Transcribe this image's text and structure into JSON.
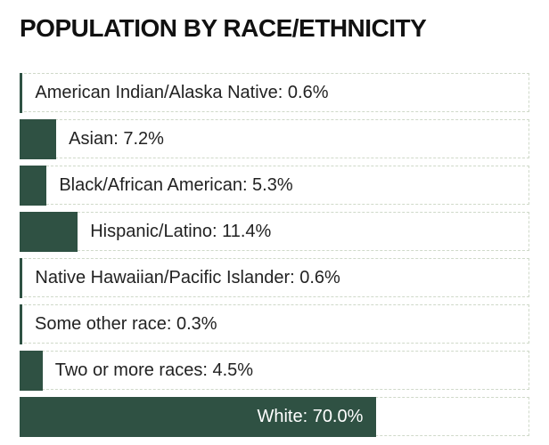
{
  "chart_data": {
    "type": "bar",
    "orientation": "horizontal",
    "title": "POPULATION BY RACE/ETHNICITY",
    "categories": [
      "American Indian/Alaska Native",
      "Asian",
      "Black/African American",
      "Hispanic/Latino",
      "Native Hawaiian/Pacific Islander",
      "Some other race",
      "Two or more races",
      "White"
    ],
    "values": [
      0.6,
      7.2,
      5.3,
      11.4,
      0.6,
      0.3,
      4.5,
      70.0
    ],
    "labels": [
      "American Indian/Alaska Native: 0.6%",
      "Asian: 7.2%",
      "Black/African American: 5.3%",
      "Hispanic/Latino: 11.4%",
      "Native Hawaiian/Pacific Islander: 0.6%",
      "Some other race: 0.3%",
      "Two or more races: 4.5%",
      "White: 70.0%"
    ],
    "xlim": [
      0,
      100
    ],
    "bar_color": "#2f5143",
    "grid": false
  }
}
